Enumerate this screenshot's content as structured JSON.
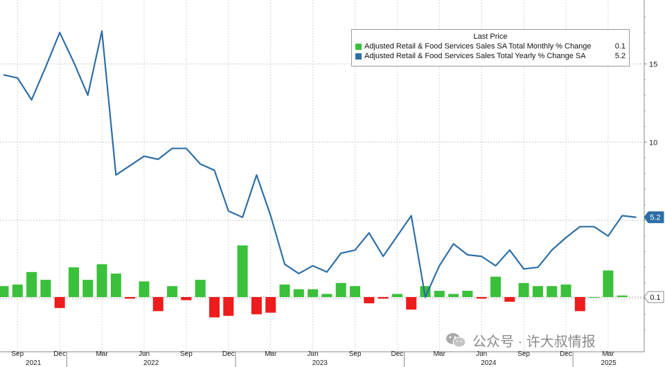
{
  "chart_data": {
    "type": "bar+line",
    "legend": {
      "header": "Last Price",
      "placement": "top-right",
      "entries": [
        {
          "name": "Adjusted Retail & Food Services Sales SA Total Monthly % Change",
          "last": "0.1",
          "color": "#3ac03a"
        },
        {
          "name": "Adjusted Retail & Food Services Sales Total Yearly % Change SA",
          "last": "5.2",
          "color": "#2d6ea5"
        }
      ]
    },
    "y_axis": {
      "ticks": [
        "15",
        "10",
        "5.2",
        "0.1"
      ],
      "range": [
        -3,
        19
      ],
      "grid": true,
      "side": "right"
    },
    "x_axis": {
      "month_labels": [
        "Sep",
        "Dec",
        "Mar",
        "Jun",
        "Sep",
        "Dec",
        "Mar",
        "Jun",
        "Sep",
        "Dec",
        "Mar",
        "Jun",
        "Sep",
        "Dec",
        "Mar"
      ],
      "year_labels": [
        "2021",
        "2022",
        "2023",
        "2024",
        "2025"
      ]
    },
    "series": [
      {
        "name": "Adjusted Retail & Food Services Sales SA Total Monthly % Change",
        "kind": "bar",
        "values": [
          0.7,
          0.8,
          1.6,
          1.1,
          -0.7,
          1.9,
          1.1,
          2.1,
          1.5,
          -0.1,
          1.0,
          -0.9,
          0.7,
          -0.2,
          1.1,
          -1.3,
          -1.2,
          3.3,
          -1.1,
          -1.0,
          0.8,
          0.5,
          0.5,
          0.2,
          0.9,
          0.7,
          -0.4,
          -0.1,
          0.2,
          -0.8,
          0.7,
          0.4,
          0.2,
          0.4,
          -0.1,
          1.3,
          -0.3,
          0.9,
          0.7,
          0.7,
          0.8,
          -0.9,
          0.0,
          1.7,
          0.1
        ]
      },
      {
        "name": "Adjusted Retail & Food Services Sales Total Yearly % Change SA",
        "kind": "line",
        "values": [
          14.3,
          14.1,
          12.7,
          14.8,
          17.0,
          15.1,
          13.0,
          17.1,
          7.9,
          8.5,
          9.1,
          8.9,
          9.6,
          9.6,
          8.6,
          8.2,
          5.6,
          5.2,
          7.9,
          5.3,
          2.2,
          1.6,
          2.1,
          1.7,
          2.9,
          3.1,
          4.2,
          2.7,
          4.0,
          5.3,
          0.1,
          2.1,
          3.5,
          2.8,
          2.7,
          2.1,
          3.1,
          1.9,
          2.0,
          3.1,
          3.9,
          4.6,
          4.6,
          4.0,
          5.3,
          5.2
        ]
      }
    ],
    "last_value_tags": [
      "5.2",
      "0.1"
    ]
  },
  "watermark": {
    "text": "公众号 · 许大叔情报",
    "icon": "wechat-icon"
  }
}
